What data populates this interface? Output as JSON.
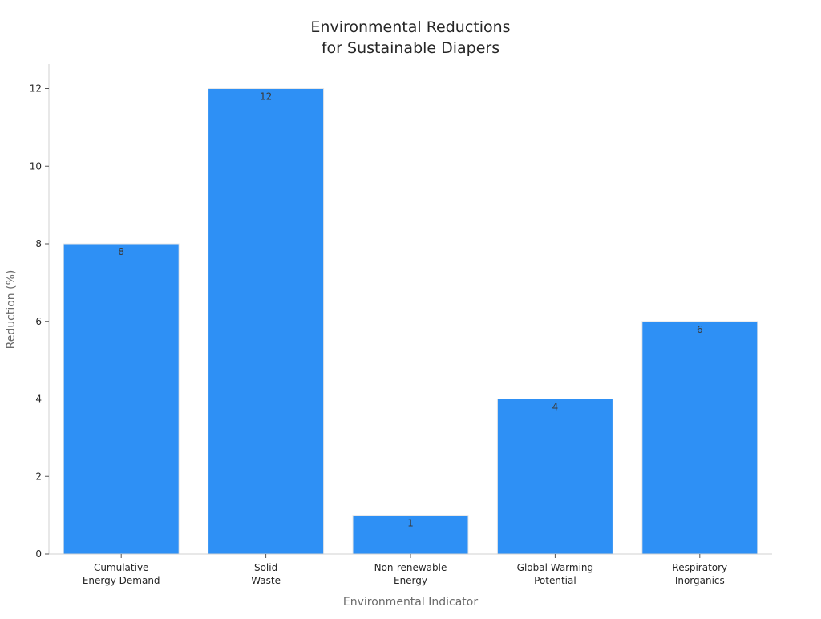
{
  "chart_data": {
    "type": "bar",
    "title": "Environmental Reductions for Sustainable Diapers",
    "title_lines": [
      "Environmental Reductions",
      "for Sustainable Diapers"
    ],
    "categories": [
      "Cumulative Energy Demand",
      "Solid Waste",
      "Non-renewable Energy",
      "Global Warming Potential",
      "Respiratory Inorganics"
    ],
    "category_lines": [
      [
        "Cumulative",
        "Energy Demand"
      ],
      [
        "Solid",
        "Waste"
      ],
      [
        "Non-renewable",
        "Energy"
      ],
      [
        "Global Warming",
        "Potential"
      ],
      [
        "Respiratory",
        "Inorganics"
      ]
    ],
    "values": [
      8,
      12,
      1,
      4,
      6
    ],
    "data_labels": [
      "8",
      "12",
      "1",
      "4",
      "6"
    ],
    "xlabel": "Environmental Indicator",
    "ylabel": "Reduction (%)",
    "ylim": [
      0,
      12.6
    ],
    "yticks": [
      0,
      2,
      4,
      6,
      8,
      10,
      12
    ],
    "grid": false,
    "legend": "none",
    "bar_color": "#2e90f5",
    "bar_edge_color": "#e8e8e8"
  }
}
